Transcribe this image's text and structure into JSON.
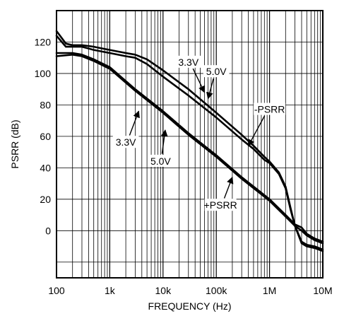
{
  "chart_data": {
    "type": "line",
    "title": "",
    "xlabel": "FREQUENCY (Hz)",
    "ylabel": "PSRR (dB)",
    "x_scale": "log",
    "xlim": [
      100,
      10000000
    ],
    "ylim": [
      -30,
      140
    ],
    "x_tick_values": [
      100,
      1000,
      10000,
      100000,
      1000000,
      10000000
    ],
    "x_tick_labels": [
      "100",
      "1k",
      "10k",
      "100k",
      "1M",
      "10M"
    ],
    "y_tick_values": [
      120,
      100,
      80,
      60,
      40,
      20,
      0
    ],
    "y_tick_labels": [
      "120",
      "100",
      "80",
      "60",
      "40",
      "20",
      "0"
    ],
    "grid": true,
    "series": [
      {
        "values": [
          [
            100,
            124
          ],
          [
            150,
            117
          ],
          [
            200,
            117
          ],
          [
            300,
            117
          ],
          [
            500,
            115
          ],
          [
            1000,
            113
          ],
          [
            2000,
            111
          ],
          [
            3000,
            110
          ],
          [
            5000,
            106
          ],
          [
            10000,
            98
          ],
          [
            30000,
            86
          ],
          [
            100000,
            72
          ],
          [
            300000,
            58
          ],
          [
            500000,
            52
          ],
          [
            800000,
            45
          ],
          [
            1000000,
            43
          ],
          [
            1500000,
            36
          ],
          [
            2000000,
            27
          ],
          [
            2500000,
            13
          ],
          [
            3000000,
            3
          ],
          [
            4000000,
            -8
          ],
          [
            5000000,
            -10
          ],
          [
            7000000,
            -11
          ],
          [
            10000000,
            -13
          ]
        ]
      },
      {
        "values": [
          [
            100,
            127
          ],
          [
            150,
            119
          ],
          [
            200,
            118
          ],
          [
            300,
            118
          ],
          [
            500,
            117
          ],
          [
            700,
            116
          ],
          [
            1000,
            115
          ],
          [
            2000,
            113
          ],
          [
            3000,
            112
          ],
          [
            5000,
            109
          ],
          [
            10000,
            102
          ],
          [
            30000,
            90
          ],
          [
            100000,
            75
          ],
          [
            300000,
            61
          ],
          [
            500000,
            54
          ],
          [
            800000,
            47
          ],
          [
            1000000,
            44
          ],
          [
            1500000,
            37
          ],
          [
            2000000,
            28
          ],
          [
            2500000,
            14
          ],
          [
            3000000,
            3
          ],
          [
            4000000,
            -7
          ],
          [
            5000000,
            -9
          ],
          [
            7000000,
            -10
          ],
          [
            10000000,
            -12
          ]
        ]
      },
      {
        "values": [
          [
            100,
            111
          ],
          [
            200,
            112
          ],
          [
            300,
            111
          ],
          [
            500,
            108
          ],
          [
            1000,
            103
          ],
          [
            3000,
            89
          ],
          [
            10000,
            75
          ],
          [
            30000,
            61
          ],
          [
            100000,
            47
          ],
          [
            300000,
            33
          ],
          [
            1000000,
            19
          ],
          [
            2000000,
            9
          ],
          [
            3000000,
            3
          ],
          [
            4000000,
            0
          ],
          [
            5000000,
            -3
          ],
          [
            7000000,
            -6
          ],
          [
            10000000,
            -8
          ]
        ]
      },
      {
        "values": [
          [
            100,
            113
          ],
          [
            200,
            113
          ],
          [
            300,
            112
          ],
          [
            500,
            109
          ],
          [
            1000,
            104
          ],
          [
            3000,
            90
          ],
          [
            10000,
            76
          ],
          [
            30000,
            62
          ],
          [
            100000,
            48
          ],
          [
            300000,
            34
          ],
          [
            1000000,
            20
          ],
          [
            2000000,
            10
          ],
          [
            3000000,
            4
          ],
          [
            4000000,
            2
          ],
          [
            5000000,
            -2
          ],
          [
            7000000,
            -5
          ],
          [
            10000000,
            -7
          ]
        ]
      }
    ],
    "annotations": [
      {
        "text": "3.3V",
        "x": 30000,
        "y": 105,
        "arrow_to": [
          60000,
          88
        ]
      },
      {
        "text": "5.0V",
        "x": 100000,
        "y": 99,
        "arrow_to": [
          70000,
          84
        ]
      },
      {
        "text": "-PSRR",
        "x": 1000000,
        "y": 75,
        "arrow_to": [
          400000,
          54
        ]
      },
      {
        "text": "3.3V",
        "x": 2000,
        "y": 54,
        "arrow_to": [
          3500,
          76
        ]
      },
      {
        "text": "5.0V",
        "x": 9000,
        "y": 42,
        "arrow_to": [
          11000,
          64
        ]
      },
      {
        "text": "+PSRR",
        "x": 120000,
        "y": 14,
        "arrow_to": [
          200000,
          34
        ]
      }
    ]
  }
}
